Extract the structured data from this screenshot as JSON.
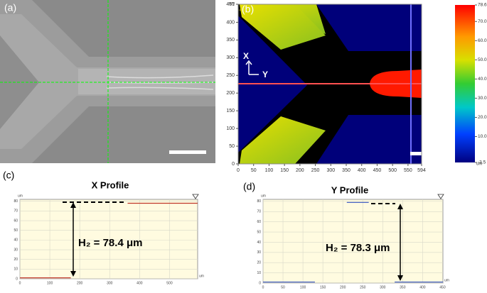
{
  "panel_a": {
    "label": "(a)"
  },
  "panel_b": {
    "label": "(b)",
    "unit": "um",
    "xlim": [
      0,
      594
    ],
    "xticks": [
      0,
      50,
      100,
      150,
      200,
      250,
      300,
      350,
      400,
      450,
      500,
      550,
      594
    ],
    "ylim": [
      0,
      451
    ],
    "yticks": [
      0,
      50,
      100,
      150,
      200,
      250,
      300,
      350,
      400,
      451
    ],
    "direction_labels": [
      "X",
      "Y"
    ],
    "colorbar": {
      "lim": [
        -3.5,
        78.6
      ],
      "unit": "um",
      "ticks": [
        78.6,
        {
          "value": 70,
          "label": "70.0"
        },
        {
          "value": 60,
          "label": "60.0"
        },
        {
          "value": 50,
          "label": "50.0"
        },
        {
          "value": 40,
          "label": "40.0"
        },
        {
          "value": 30,
          "label": "30.0"
        },
        {
          "value": 20,
          "label": "20.0"
        },
        {
          "value": 10,
          "label": "10.0"
        },
        -3.5
      ]
    }
  },
  "panel_c": {
    "label": "(c)",
    "title": "X Profile",
    "annotation": "H₂ = 78.4 μm",
    "unit": "um",
    "xlim": [
      0,
      594
    ],
    "xticks": [
      0,
      100,
      200,
      300,
      400,
      500
    ],
    "ylim": [
      0,
      82
    ],
    "yticks": [
      0,
      10,
      20,
      30,
      40,
      50,
      60,
      70,
      80
    ],
    "series": [
      {
        "color": "#c0392b",
        "x": [
          0,
          170,
          250,
          360,
          594
        ],
        "values": [
          1,
          1,
          null,
          78,
          78
        ]
      }
    ]
  },
  "panel_d": {
    "label": "(d)",
    "title": "Y Profile",
    "annotation": "H₂ = 78.3 μm",
    "unit": "um",
    "xlim": [
      0,
      451
    ],
    "xticks": [
      0,
      50,
      100,
      150,
      200,
      250,
      300,
      350,
      400,
      450
    ],
    "ylim": [
      0,
      82
    ],
    "yticks": [
      0,
      10,
      20,
      30,
      40,
      50,
      60,
      70,
      80
    ],
    "series": [
      {
        "color": "#3050c0",
        "x": [
          0,
          130,
          170,
          210,
          265,
          300,
          330,
          451
        ],
        "values": [
          1,
          1,
          null,
          79,
          79,
          null,
          1,
          1
        ]
      }
    ]
  }
}
